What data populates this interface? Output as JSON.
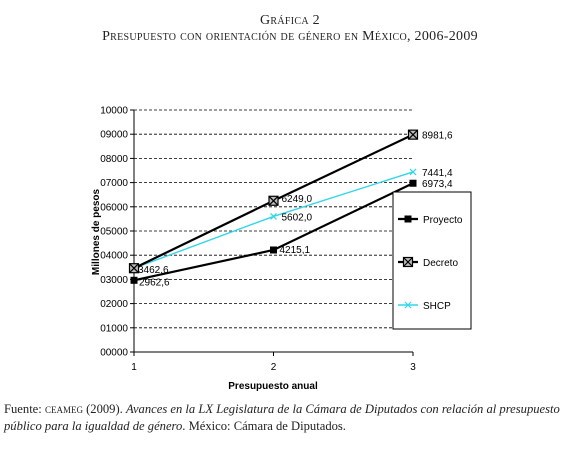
{
  "figure": {
    "number_title": "Gráfica 2",
    "title": "Presupuesto con orientación de género en México, 2006-2009"
  },
  "chart_data": {
    "type": "line",
    "title": "",
    "xlabel": "Presupuesto anual",
    "ylabel": "Millones de pesos",
    "x": [
      1,
      2,
      3
    ],
    "x_tick_labels": [
      "1",
      "2",
      "3"
    ],
    "xlim": [
      1,
      3
    ],
    "ylim": [
      0,
      10000
    ],
    "y_tick_labels": [
      "00000",
      "01000",
      "02000",
      "03000",
      "04000",
      "05000",
      "06000",
      "07000",
      "08000",
      "09000",
      "10000"
    ],
    "grid": "horizontal dashed",
    "legend_position": "right",
    "series": [
      {
        "name": "Proyecto",
        "values": [
          2962.6,
          4215.1,
          6973.4
        ],
        "labels": [
          "2962,6",
          "4215,1",
          "6973,4"
        ],
        "color": "#000000",
        "marker": "square"
      },
      {
        "name": "Decreto",
        "values": [
          3462.6,
          6249.0,
          8981.6
        ],
        "labels": [
          "3462,6",
          "6249,0",
          "8981,6"
        ],
        "color": "#000000",
        "marker": "square-x"
      },
      {
        "name": "SHCP",
        "values": [
          3462.6,
          5602.0,
          7441.4
        ],
        "labels": [
          "",
          "5602,0",
          "7441,4"
        ],
        "color": "#33d6e8",
        "marker": "x"
      }
    ]
  },
  "caption": {
    "prefix": "Fuente: ",
    "org": "ceameg",
    "year": " (2009). ",
    "italic_title": "Avances en la LX Legislatura de la Cámara de Diputados con relación al presupuesto público para la igualdad de género",
    "suffix": ". México: Cámara de Diputados."
  }
}
